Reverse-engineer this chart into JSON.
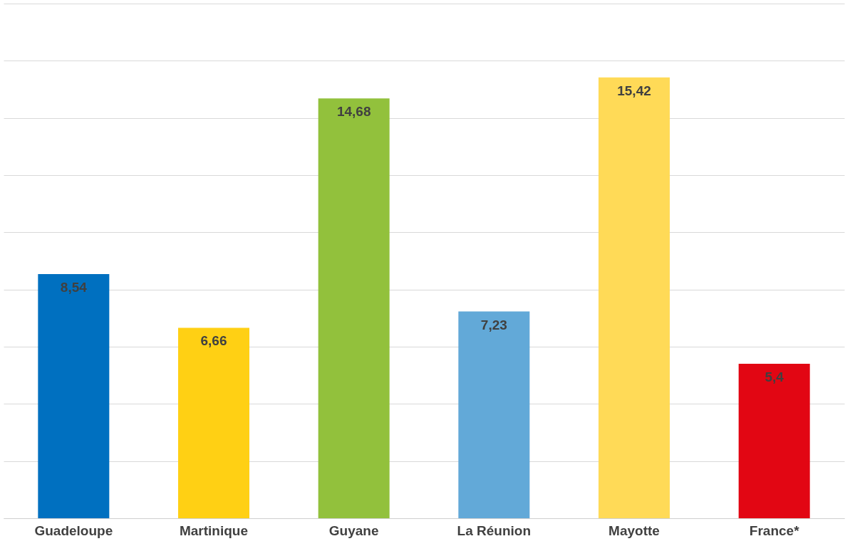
{
  "chart_data": {
    "type": "bar",
    "categories": [
      "Guadeloupe",
      "Martinique",
      "Guyane",
      "La Réunion",
      "Mayotte",
      "France*"
    ],
    "values": [
      8.54,
      6.66,
      14.68,
      7.23,
      15.42,
      5.4
    ],
    "colors": [
      "#0070c0",
      "#ffd014",
      "#92c13c",
      "#62a9d8",
      "#ffda57",
      "#e20613"
    ],
    "value_labels": [
      "8,54",
      "6,66",
      "14,68",
      "7,23",
      "15,42",
      "5,4"
    ],
    "ylim": [
      0,
      18
    ],
    "yticks": [
      {
        "value": 0,
        "label": null
      },
      {
        "value": 2,
        "label": null
      },
      {
        "value": 4,
        "label": null
      },
      {
        "value": 6,
        "label": null
      },
      {
        "value": 8,
        "label": null
      },
      {
        "value": 10,
        "label": null
      },
      {
        "value": 12,
        "label": null
      },
      {
        "value": 14,
        "label": null
      },
      {
        "value": 16,
        "label": null
      },
      {
        "value": 18,
        "label": null
      }
    ],
    "tick_labels": "x",
    "grid": "y"
  }
}
